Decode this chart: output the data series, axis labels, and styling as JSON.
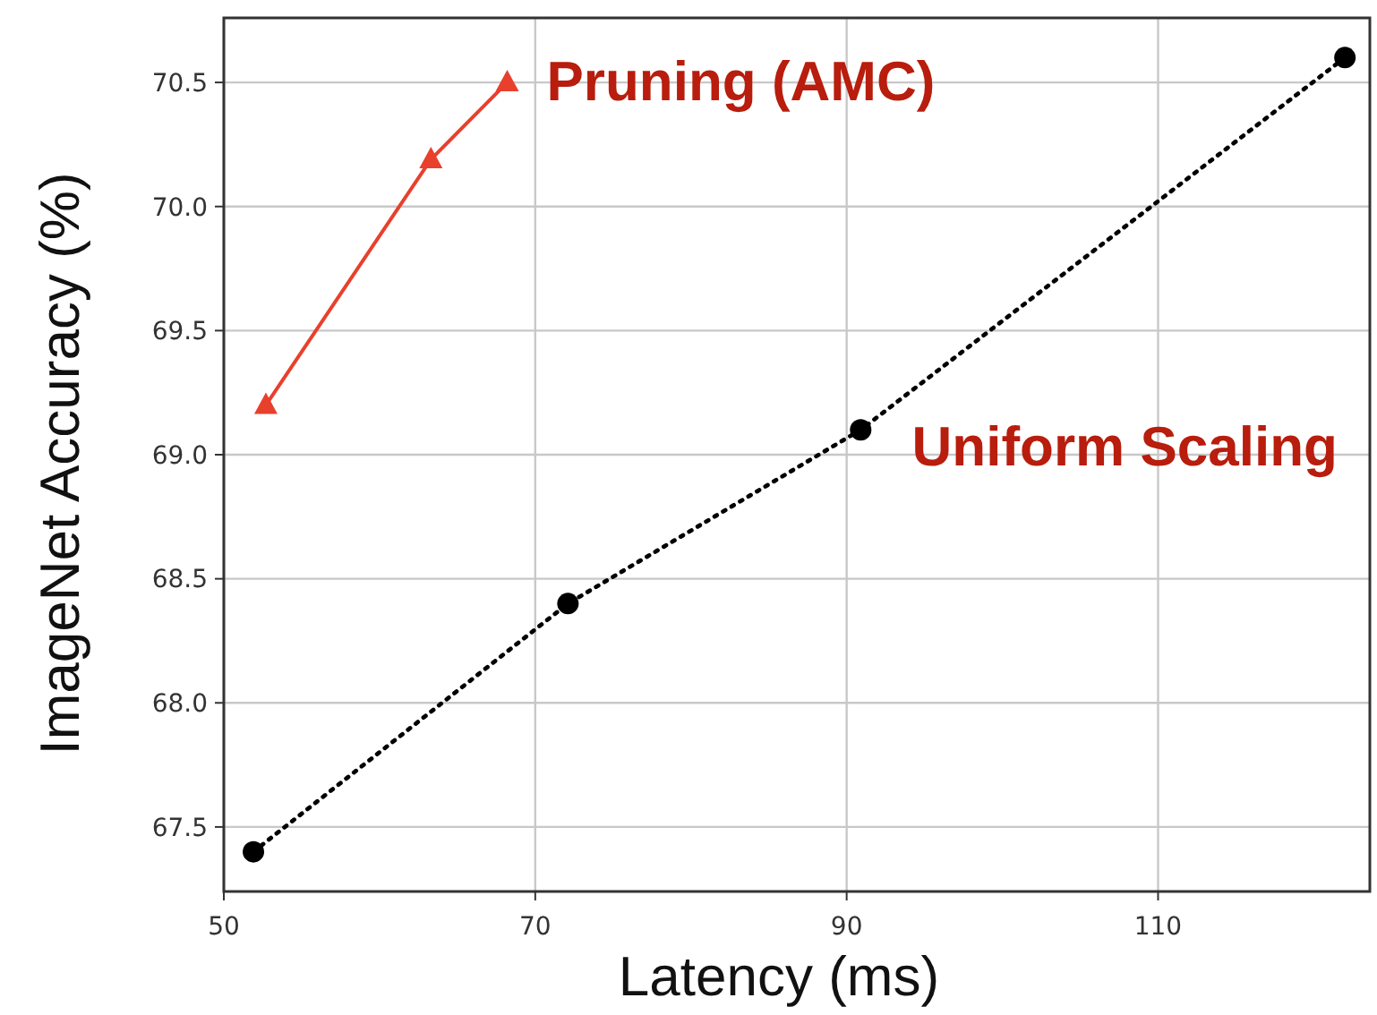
{
  "chart_data": {
    "type": "line",
    "xlabel": "Latency (ms)",
    "ylabel": "ImageNet Accuracy (%)",
    "xlim": [
      50,
      123.6
    ],
    "xticks": [
      50,
      70,
      90,
      110
    ],
    "ylim": [
      67.24,
      70.76
    ],
    "yticks": [
      67.5,
      {
        "value": 68,
        "label": "68.0"
      },
      68.5,
      {
        "value": 69,
        "label": "69.0"
      },
      69.5,
      {
        "value": 70,
        "label": "70.0"
      },
      70.5
    ],
    "grid": true,
    "series": [
      {
        "name": "Pruning (AMC)",
        "color": "#e8402c",
        "marker": "triangle",
        "line_style": "solid",
        "x": [
          52.7,
          63.3,
          68.2
        ],
        "values": [
          69.2,
          70.19,
          70.5
        ]
      },
      {
        "name": "Uniform Scaling",
        "color": "#000000",
        "marker": "circle",
        "line_style": "dotted",
        "x": [
          51.9,
          72.1,
          90.9,
          122.0
        ],
        "values": [
          67.4,
          68.4,
          69.1,
          70.6
        ]
      }
    ]
  }
}
